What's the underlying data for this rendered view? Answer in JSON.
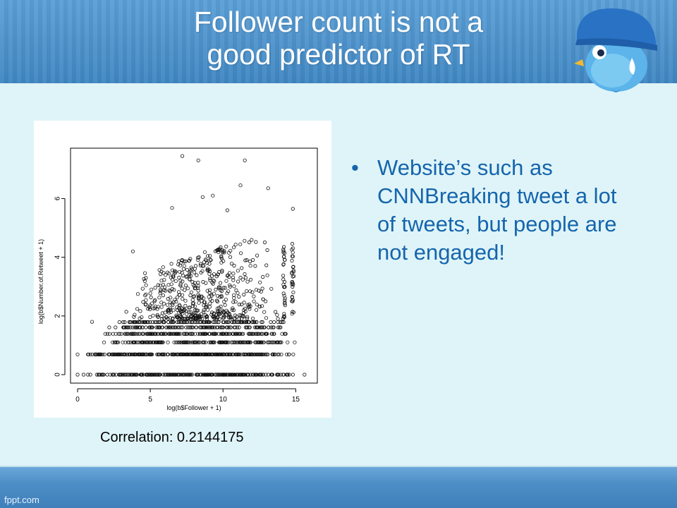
{
  "slide": {
    "title_line1": "Follower count is not a",
    "title_line2": "good predictor of RT",
    "caption": "Correlation: 0.2144175",
    "bullets": [
      "Website’s such as CNNBreaking tweet a lot of tweets, but people are not engaged!"
    ],
    "bullet_glyph": "•",
    "footer": "fppt.com",
    "colors": {
      "header": "#4b90c9",
      "content_bg": "#dff4f8",
      "bullet_text": "#1565ad",
      "title_text": "#ffffff"
    },
    "mascot_icon": "blue-bird-helmet-icon"
  },
  "chart_data": {
    "type": "scatter",
    "xlabel": "log(b$Follower + 1)",
    "ylabel": "log(b$Number.of.Retweet + 1)",
    "xlim": [
      0,
      16
    ],
    "ylim": [
      0,
      7.5
    ],
    "xticks": [
      "0",
      "5",
      "10",
      "15"
    ],
    "yticks": [
      "0",
      "2",
      "4",
      "6"
    ],
    "marker": "open-circle",
    "grid": false,
    "notable_points": [
      {
        "x": 7.2,
        "y": 7.45
      },
      {
        "x": 8.3,
        "y": 7.3
      },
      {
        "x": 11.5,
        "y": 7.3
      },
      {
        "x": 11.2,
        "y": 6.45
      },
      {
        "x": 13.1,
        "y": 6.35
      },
      {
        "x": 8.6,
        "y": 6.05
      },
      {
        "x": 9.3,
        "y": 6.1
      },
      {
        "x": 6.5,
        "y": 5.68
      },
      {
        "x": 14.8,
        "y": 5.65
      },
      {
        "x": 10.3,
        "y": 5.6
      },
      {
        "x": 3.8,
        "y": 4.2
      },
      {
        "x": 1.0,
        "y": 1.8
      },
      {
        "x": 0.0,
        "y": 0.0
      },
      {
        "x": 0.0,
        "y": 0.69
      },
      {
        "x": 15.6,
        "y": 0.0
      }
    ],
    "point_bands": [
      {
        "y": 0.0,
        "x_range": [
          0.0,
          15.8
        ],
        "density": "very high"
      },
      {
        "y": 0.69,
        "x_range": [
          0.0,
          15.1
        ],
        "density": "very high"
      },
      {
        "y": 1.1,
        "x_range": [
          1.5,
          15.0
        ],
        "density": "high"
      },
      {
        "y": 1.39,
        "x_range": [
          1.2,
          14.9
        ],
        "density": "high"
      },
      {
        "y": 1.61,
        "x_range": [
          2.0,
          14.8
        ],
        "density": "medium"
      },
      {
        "y": 1.79,
        "x_range": [
          2.2,
          14.8
        ],
        "density": "medium"
      }
    ],
    "scattered_cloud": {
      "x_range": [
        2.5,
        15.0
      ],
      "y_range": [
        1.9,
        5.3
      ],
      "peak_density_x": 8.5
    }
  }
}
